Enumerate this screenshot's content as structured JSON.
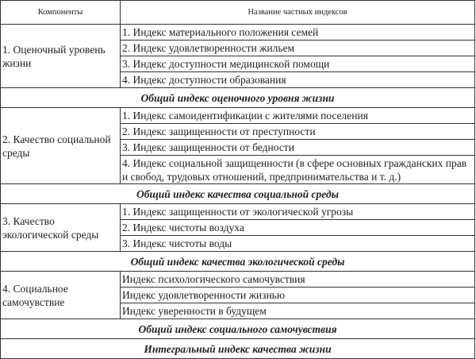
{
  "header": {
    "components": "Компоненты",
    "indices": "Название частных индексов"
  },
  "sections": [
    {
      "component": "1. Оценочный уровень жизни",
      "indices": [
        "1. Индекс материального положения семей",
        "2. Индекс удовлетворенности жильем",
        "3. Индекс доступности медицинской помощи",
        "4. Индекс доступности образования"
      ],
      "summary": "Общий индекс оценочного уровня жизни"
    },
    {
      "component": "2. Качество социальной среды",
      "indices": [
        "1. Индекс самоидентификации с жителями поселения",
        "2. Индекс защищенности от преступности",
        "3. Индекс защищенности от бедности",
        "4. Индекс социальной защищенности (в сфере основных гражданских прав и свобод, трудовых отношений, предпринимательства и т. д.)"
      ],
      "summary": "Общий индекс качества социальной среды"
    },
    {
      "component": "3. Качество экологической среды",
      "indices": [
        "1. Индекс защищенности от экологической угрозы",
        "2. Индекс чистоты воздуха",
        "3. Индекс чистоты воды"
      ],
      "summary": "Общий индекс качества экологической среды"
    },
    {
      "component": "4. Социальное самочувствие",
      "indices": [
        "Индекс психологического самочувствия",
        "Индекс удовлетворенности жизнью",
        "Индекс уверенности в будущем"
      ],
      "summary": "Общий индекс социального самочувствия"
    }
  ],
  "final": "Интегральный индекс качества жизни"
}
